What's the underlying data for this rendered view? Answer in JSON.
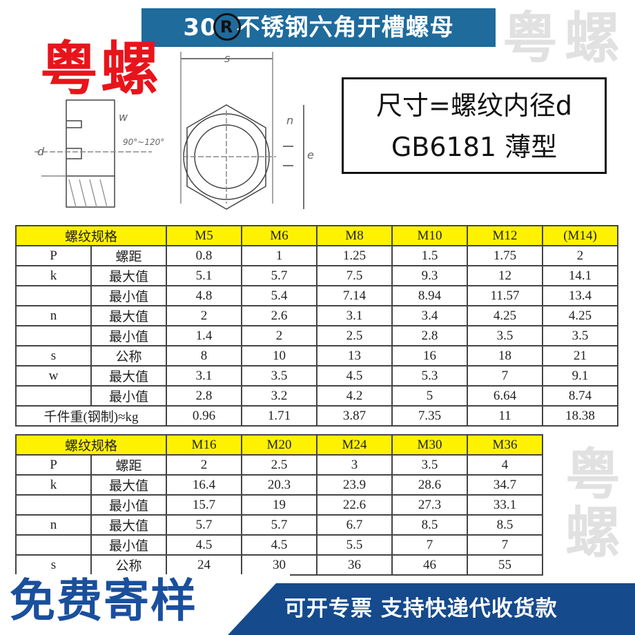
{
  "header": {
    "title_prefix": "30",
    "title_reg": "R",
    "title_suffix": "不锈钢六角开槽螺母"
  },
  "brand": "粤螺",
  "drawing_labels": {
    "s": "s",
    "w": "w",
    "n": "n",
    "d": "d",
    "e": "e",
    "angle": "90°~120°"
  },
  "spec_box": {
    "line1": "尺寸=螺纹内径d",
    "line2": "GB6181 薄型"
  },
  "watermark": "粤螺",
  "table1": {
    "header_label": "螺纹规格",
    "sizes": [
      "M5",
      "M6",
      "M8",
      "M10",
      "M12",
      "(M14)"
    ],
    "rows": [
      {
        "sym": "P",
        "name": "螺距",
        "values": [
          "0.8",
          "1",
          "1.25",
          "1.5",
          "1.75",
          "2"
        ]
      },
      {
        "sym": "k",
        "name": "最大值",
        "values": [
          "5.1",
          "5.7",
          "7.5",
          "9.3",
          "12",
          "14.1"
        ]
      },
      {
        "sym": "",
        "name": "最小值",
        "values": [
          "4.8",
          "5.4",
          "7.14",
          "8.94",
          "11.57",
          "13.4"
        ]
      },
      {
        "sym": "n",
        "name": "最大值",
        "values": [
          "2",
          "2.6",
          "3.1",
          "3.4",
          "4.25",
          "4.25"
        ]
      },
      {
        "sym": "",
        "name": "最小值",
        "values": [
          "1.4",
          "2",
          "2.5",
          "2.8",
          "3.5",
          "3.5"
        ]
      },
      {
        "sym": "s",
        "name": "公称",
        "values": [
          "8",
          "10",
          "13",
          "16",
          "18",
          "21"
        ]
      },
      {
        "sym": "w",
        "name": "最大值",
        "values": [
          "3.1",
          "3.5",
          "4.5",
          "5.3",
          "7",
          "9.1"
        ]
      },
      {
        "sym": "",
        "name": "最小值",
        "values": [
          "2.8",
          "3.2",
          "4.2",
          "5",
          "6.64",
          "8.74"
        ]
      }
    ],
    "weight_label": "千件重(钢制)≈kg",
    "weight_values": [
      "0.96",
      "1.71",
      "3.87",
      "7.35",
      "11",
      "18.38"
    ]
  },
  "table2": {
    "header_label": "螺纹规格",
    "sizes": [
      "M16",
      "M20",
      "M24",
      "M30",
      "M36"
    ],
    "rows": [
      {
        "sym": "P",
        "name": "螺距",
        "values": [
          "2",
          "2.5",
          "3",
          "3.5",
          "4"
        ]
      },
      {
        "sym": "k",
        "name": "最大值",
        "values": [
          "16.4",
          "20.3",
          "23.9",
          "28.6",
          "34.7"
        ]
      },
      {
        "sym": "",
        "name": "最小值",
        "values": [
          "15.7",
          "19",
          "22.6",
          "27.3",
          "33.1"
        ]
      },
      {
        "sym": "n",
        "name": "最大值",
        "values": [
          "5.7",
          "5.7",
          "6.7",
          "8.5",
          "8.5"
        ]
      },
      {
        "sym": "",
        "name": "最小值",
        "values": [
          "4.5",
          "4.5",
          "5.5",
          "7",
          "7"
        ]
      },
      {
        "sym": "s",
        "name": "公称",
        "values": [
          "24",
          "30",
          "36",
          "46",
          "55"
        ]
      }
    ]
  },
  "footer": {
    "free_sample": "免费寄样",
    "services": "可开专票 支持快递代收货款"
  },
  "colors": {
    "title_bg": "#1e6b9c",
    "brand_red": "#e8141b",
    "header_yellow": "#fff200",
    "footer_blue": "#154a8c"
  }
}
